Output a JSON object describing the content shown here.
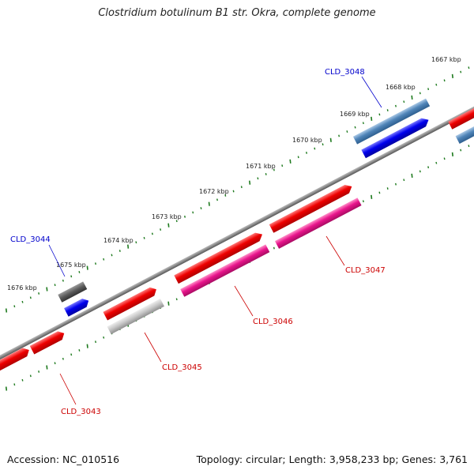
{
  "title": "Clostridium botulinum B1 str. Okra, complete genome",
  "footer": {
    "accession": "Accession: NC_010516",
    "summary": "Topology: circular; Length: 3,958,233 bp; Genes: 3,761"
  },
  "colors": {
    "backbone": "#8a8a8a",
    "tick": "#1e7a1e",
    "gene_red": "#ee0000",
    "gene_pink": "#e8148c",
    "gene_gray": "#bdbdbd",
    "gene_dark": "#555555",
    "gene_blue": "#0000ee",
    "gene_steel": "#4f84b8",
    "label_red": "#cc0000",
    "label_blue": "#0000cc"
  },
  "ticks": [
    {
      "label": "1667 kbp",
      "kbp": 1667
    },
    {
      "label": "1668 kbp",
      "kbp": 1668
    },
    {
      "label": "1669 kbp",
      "kbp": 1669
    },
    {
      "label": "1670 kbp",
      "kbp": 1670
    },
    {
      "label": "1671 kbp",
      "kbp": 1671
    },
    {
      "label": "1672 kbp",
      "kbp": 1672
    },
    {
      "label": "1673 kbp",
      "kbp": 1673
    },
    {
      "label": "1674 kbp",
      "kbp": 1674
    },
    {
      "label": "1675 kbp",
      "kbp": 1675
    },
    {
      "label": "1676 kbp",
      "kbp": 1676
    }
  ],
  "gene_labels": [
    {
      "id": "CLD_3048",
      "text": "CLD_3048",
      "color": "label_blue"
    },
    {
      "id": "CLD_3044",
      "text": "CLD_3044",
      "color": "label_blue"
    },
    {
      "id": "CLD_3047",
      "text": "CLD_3047",
      "color": "label_red"
    },
    {
      "id": "CLD_3046",
      "text": "CLD_3046",
      "color": "label_red"
    },
    {
      "id": "CLD_3045",
      "text": "CLD_3045",
      "color": "label_red"
    },
    {
      "id": "CLD_3043",
      "text": "CLD_3043",
      "color": "label_red"
    }
  ]
}
